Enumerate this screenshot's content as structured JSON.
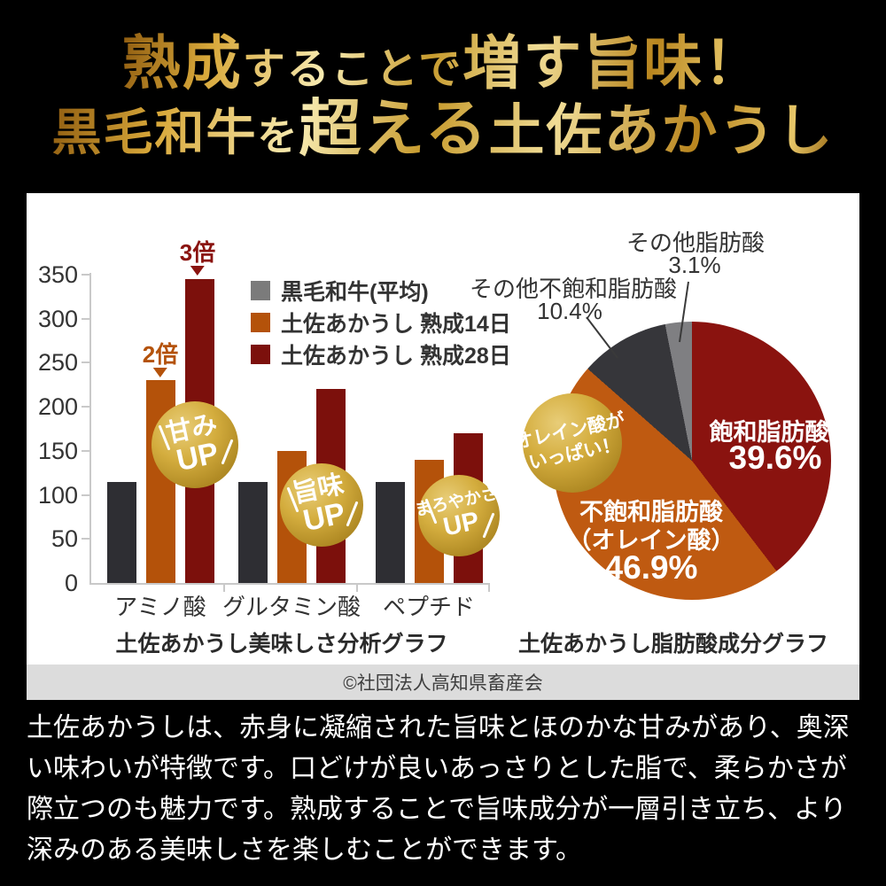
{
  "header": {
    "line1": [
      {
        "text": "熟成"
      },
      {
        "text": "することで"
      },
      {
        "text": "増す旨味！"
      }
    ],
    "line2": [
      {
        "text": "黒毛和牛"
      },
      {
        "text": "を"
      },
      {
        "text": "超える"
      },
      {
        "text": "土佐あかうし"
      }
    ]
  },
  "panel": {
    "copyright": "©社団法人高知県畜産会",
    "description": "土佐あかうしは、赤身に凝縮された旨味とほのかな甘みがあり、奥深い味わいが特徴です。口どけが良いあっさりとした脂で、柔らかさが際立つのも魅力です。熟成することで旨味成分が一層引き立ち、より深みのある美味しさを楽しむことができます。"
  },
  "chart_data": [
    {
      "type": "bar",
      "title": "土佐あかうし美味しさ分析グラフ",
      "categories": [
        "アミノ酸",
        "グルタミン酸",
        "ペプチド"
      ],
      "series": [
        {
          "name": "黒毛和牛(平均)",
          "color": "#2e2e33",
          "legend_color": "#7b7b7b",
          "values": [
            115,
            115,
            115
          ]
        },
        {
          "name": "土佐あかうし 熟成14日",
          "color": "#b4520a",
          "legend_color": "#b4520a",
          "values": [
            230,
            150,
            140
          ]
        },
        {
          "name": "土佐あかうし 熟成28日",
          "color": "#7c100c",
          "legend_color": "#7c100c",
          "values": [
            345,
            220,
            170
          ]
        }
      ],
      "ylim": [
        0,
        350
      ],
      "yticks": [
        0,
        50,
        100,
        150,
        200,
        250,
        300,
        350
      ],
      "grid": false,
      "legend_position": "top-right",
      "annotations": [
        {
          "text": "2倍",
          "color": "#b4520a",
          "target": "アミノ酸 熟成14日"
        },
        {
          "text": "3倍",
          "color": "#8a130f",
          "target": "アミノ酸 熟成28日"
        }
      ],
      "badges": [
        {
          "line1": "甘み",
          "line2": "UP",
          "target": "アミノ酸"
        },
        {
          "line1": "旨味",
          "line2": "UP",
          "target": "グルタミン酸"
        },
        {
          "line1": "まろやかさ",
          "line2": "UP",
          "target": "ペプチド"
        }
      ]
    },
    {
      "type": "pie",
      "title": "土佐あかうし脂肪酸成分グラフ",
      "slices": [
        {
          "label": "飽和脂肪酸",
          "pct": 39.6,
          "pct_label": "39.6%",
          "color": "#8a130f"
        },
        {
          "label": "不飽和脂肪酸",
          "label2": "（オレイン酸）",
          "pct": 46.9,
          "pct_label": "46.9%",
          "color": "#bf5a11"
        },
        {
          "label": "その他不飽和脂肪酸",
          "pct": 10.4,
          "pct_label": "10.4%",
          "color": "#36363a"
        },
        {
          "label": "その他脂肪酸",
          "pct": 3.1,
          "pct_label": "3.1%",
          "color": "#7f7f82"
        }
      ],
      "badge": {
        "line1": "オレイン酸が",
        "line2": "いっぱい！"
      }
    }
  ]
}
